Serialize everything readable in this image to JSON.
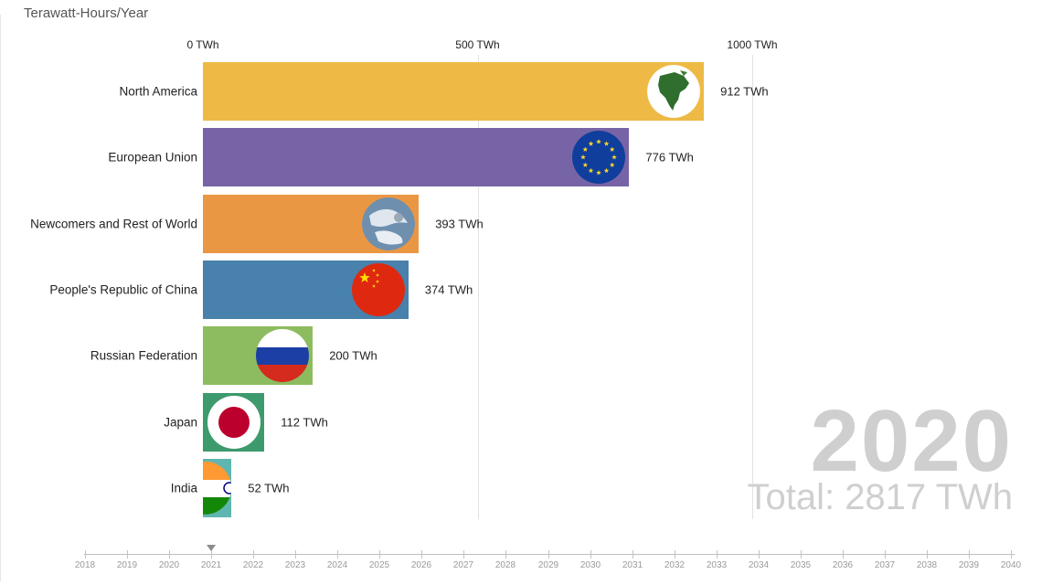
{
  "chart_data": {
    "type": "bar",
    "orientation": "horizontal",
    "title": "Terawatt-Hours/Year",
    "xlim": [
      0,
      1000
    ],
    "x_ticks": [
      "0 TWh",
      "500 TWh",
      "1000 TWh"
    ],
    "x_tick_values": [
      0,
      500,
      1000
    ],
    "grid": true,
    "categories": [
      "North America",
      "European Union",
      "Newcomers and Rest of World",
      "People's Republic of China",
      "Russian Federation",
      "Japan",
      "India"
    ],
    "values": [
      912,
      776,
      393,
      374,
      200,
      112,
      52
    ],
    "value_labels": [
      "912 TWh",
      "776 TWh",
      "393 TWh",
      "374 TWh",
      "200 TWh",
      "112 TWh",
      "52 TWh"
    ],
    "colors": [
      "#eeba45",
      "#7764a6",
      "#ea9744",
      "#4881ab",
      "#8cbc5f",
      "#3d9a6c",
      "#5fb6b0"
    ],
    "flag_icons": [
      "north-america-globe-icon",
      "eu-flag-icon",
      "earth-globe-icon",
      "china-flag-icon",
      "russia-flag-icon",
      "japan-flag-icon",
      "india-flag-icon"
    ],
    "year": "2020",
    "total": "Total: 2817 TWh"
  },
  "timeline": {
    "years": [
      "2018",
      "2019",
      "2020",
      "2021",
      "2022",
      "2023",
      "2024",
      "2025",
      "2026",
      "2027",
      "2028",
      "2029",
      "2030",
      "2031",
      "2032",
      "2033",
      "2034",
      "2035",
      "2036",
      "2037",
      "2038",
      "2039",
      "2040"
    ],
    "current": "2021"
  }
}
